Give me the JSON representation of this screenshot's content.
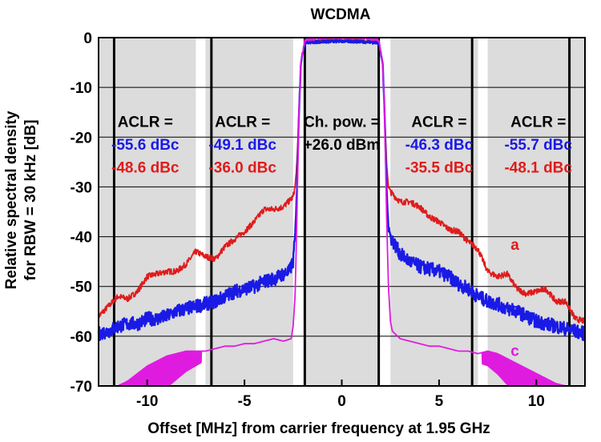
{
  "chart_data": {
    "type": "line",
    "title": "WCDMA",
    "xlabel": "Offset [MHz] from carrier frequency at 1.95 GHz",
    "ylabel_lines": [
      "Relative spectral density",
      "for RBW = 30 kHz [dB]"
    ],
    "xlim": [
      -12.5,
      12.5
    ],
    "ylim": [
      -70,
      0
    ],
    "x_ticks": [
      -10,
      -5,
      0,
      5,
      10
    ],
    "x_tick_labels": [
      "-10",
      "-5",
      "0",
      "5",
      "10"
    ],
    "y_ticks": [
      0,
      -10,
      -20,
      -30,
      -40,
      -50,
      -60,
      -70
    ],
    "y_tick_labels": [
      "0",
      "-10",
      "-20",
      "-30",
      "-40",
      "-50",
      "-60",
      "-70"
    ],
    "grid": "horizontal",
    "shaded_bands": [
      [
        -12.5,
        -7.5
      ],
      [
        -7,
        -2.5
      ],
      [
        -1.9,
        1.9
      ],
      [
        2.5,
        7
      ],
      [
        7.5,
        12.5
      ]
    ],
    "band_lines": [
      -11.7,
      -6.7,
      -1.9,
      1.9,
      6.7,
      11.7
    ],
    "annotations": [
      {
        "label": "ACLR =",
        "x": -10.1,
        "y": -16.8
      },
      {
        "label": "-55.6 dBc",
        "x": -10.1,
        "y": -21.4,
        "color": "#1a1ae6"
      },
      {
        "label": "-48.6 dBc",
        "x": -10.1,
        "y": -26.0,
        "color": "#e01b1b"
      },
      {
        "label": "ACLR =",
        "x": -5.1,
        "y": -16.8
      },
      {
        "label": "-49.1 dBc",
        "x": -5.1,
        "y": -21.4,
        "color": "#1a1ae6"
      },
      {
        "label": "-36.0 dBc",
        "x": -5.1,
        "y": -26.0,
        "color": "#e01b1b"
      },
      {
        "label": "Ch. pow. =",
        "x": 0,
        "y": -16.8
      },
      {
        "label": "+26.0 dBm",
        "x": 0,
        "y": -21.4
      },
      {
        "label": "ACLR =",
        "x": 5.0,
        "y": -16.8
      },
      {
        "label": "-46.3 dBc",
        "x": 5.0,
        "y": -21.4,
        "color": "#1a1ae6"
      },
      {
        "label": "-35.5 dBc",
        "x": 5.0,
        "y": -26.0,
        "color": "#e01b1b"
      },
      {
        "label": "ACLR =",
        "x": 10.1,
        "y": -16.8
      },
      {
        "label": "-55.7 dBc",
        "x": 10.1,
        "y": -21.4,
        "color": "#1a1ae6"
      },
      {
        "label": "-48.1 dBc",
        "x": 10.1,
        "y": -26.0,
        "color": "#e01b1b"
      }
    ],
    "curve_labels": [
      {
        "label": "a",
        "x": 8.9,
        "y": -41.5,
        "color": "#e01b1b"
      },
      {
        "label": "b",
        "x": 8.9,
        "y": -54.5,
        "color": "#1a1ae6"
      },
      {
        "label": "c",
        "x": 8.9,
        "y": -62.8,
        "color": "#e01be0"
      }
    ],
    "series": [
      {
        "name": "a",
        "color": "#e01b1b",
        "points": [
          [
            -12.5,
            -56
          ],
          [
            -12,
            -54
          ],
          [
            -11.5,
            -52
          ],
          [
            -11,
            -52.5
          ],
          [
            -10.5,
            -51
          ],
          [
            -10,
            -48
          ],
          [
            -9.5,
            -47.5
          ],
          [
            -9,
            -47
          ],
          [
            -8.5,
            -47
          ],
          [
            -8,
            -45.5
          ],
          [
            -7.5,
            -43
          ],
          [
            -7,
            -44
          ],
          [
            -6.5,
            -44.5
          ],
          [
            -6,
            -42
          ],
          [
            -5.5,
            -40.5
          ],
          [
            -5,
            -39
          ],
          [
            -4.5,
            -37
          ],
          [
            -4,
            -34.5
          ],
          [
            -3.5,
            -34.5
          ],
          [
            -3,
            -34
          ],
          [
            -2.5,
            -32
          ],
          [
            -2.4,
            -30
          ],
          [
            -2.3,
            -25
          ],
          [
            -2.2,
            -15
          ],
          [
            -2.1,
            -5
          ],
          [
            -1.9,
            -1
          ],
          [
            -1,
            -0.5
          ],
          [
            0,
            -0.5
          ],
          [
            1,
            -0.5
          ],
          [
            1.9,
            -1
          ],
          [
            2.1,
            -5
          ],
          [
            2.2,
            -15
          ],
          [
            2.3,
            -25
          ],
          [
            2.4,
            -30
          ],
          [
            2.5,
            -31
          ],
          [
            3,
            -33
          ],
          [
            3.5,
            -33
          ],
          [
            4,
            -34
          ],
          [
            4.5,
            -36
          ],
          [
            5,
            -37
          ],
          [
            5.5,
            -38.5
          ],
          [
            6,
            -39
          ],
          [
            6.5,
            -41
          ],
          [
            7,
            -42.5
          ],
          [
            7.5,
            -47
          ],
          [
            8,
            -48
          ],
          [
            8.5,
            -47.5
          ],
          [
            9,
            -50.5
          ],
          [
            9.5,
            -51.5
          ],
          [
            10,
            -51
          ],
          [
            10.5,
            -50.5
          ],
          [
            11,
            -53
          ],
          [
            11.5,
            -53
          ],
          [
            12,
            -56.5
          ],
          [
            12.5,
            -57
          ]
        ]
      },
      {
        "name": "b",
        "color": "#1a1ae6",
        "points": [
          [
            -12.5,
            -59.5
          ],
          [
            -12,
            -59
          ],
          [
            -11.5,
            -58
          ],
          [
            -11,
            -57.5
          ],
          [
            -10.5,
            -57.5
          ],
          [
            -10,
            -56.5
          ],
          [
            -9.5,
            -56.5
          ],
          [
            -9,
            -56
          ],
          [
            -8.5,
            -55
          ],
          [
            -8,
            -54.5
          ],
          [
            -7.5,
            -54
          ],
          [
            -7,
            -53.5
          ],
          [
            -6.5,
            -53
          ],
          [
            -6,
            -52
          ],
          [
            -5.5,
            -51
          ],
          [
            -5,
            -50.5
          ],
          [
            -4.5,
            -50
          ],
          [
            -4,
            -49
          ],
          [
            -3.5,
            -48.5
          ],
          [
            -3,
            -47.5
          ],
          [
            -2.7,
            -47
          ],
          [
            -2.5,
            -45
          ],
          [
            -2.4,
            -40
          ],
          [
            -2.3,
            -30
          ],
          [
            -2.2,
            -15
          ],
          [
            -2.1,
            -5
          ],
          [
            -1.9,
            -1
          ],
          [
            -1,
            -0.8
          ],
          [
            0,
            -0.7
          ],
          [
            1,
            -0.8
          ],
          [
            1.9,
            -1
          ],
          [
            2.1,
            -5
          ],
          [
            2.2,
            -15
          ],
          [
            2.3,
            -30
          ],
          [
            2.4,
            -38
          ],
          [
            2.5,
            -40
          ],
          [
            3,
            -43.5
          ],
          [
            3.5,
            -45
          ],
          [
            4,
            -46
          ],
          [
            4.5,
            -46.5
          ],
          [
            5,
            -47
          ],
          [
            5.5,
            -48
          ],
          [
            6,
            -49.5
          ],
          [
            6.5,
            -50.5
          ],
          [
            7,
            -52
          ],
          [
            7.5,
            -53
          ],
          [
            8,
            -53.5
          ],
          [
            8.5,
            -54.5
          ],
          [
            9,
            -55
          ],
          [
            9.5,
            -56
          ],
          [
            10,
            -57
          ],
          [
            10.5,
            -57.5
          ],
          [
            11,
            -58
          ],
          [
            11.5,
            -58.5
          ],
          [
            12,
            -59
          ],
          [
            12.5,
            -59.5
          ]
        ]
      },
      {
        "name": "c",
        "color": "#e01be0",
        "points": [
          [
            -12.5,
            -70
          ],
          [
            -11.5,
            -70
          ],
          [
            -11,
            -69
          ],
          [
            -10.5,
            -67.5
          ],
          [
            -10,
            -66
          ],
          [
            -9.5,
            -65
          ],
          [
            -9,
            -64
          ],
          [
            -8.5,
            -63.5
          ],
          [
            -8,
            -63
          ],
          [
            -7.5,
            -63
          ],
          [
            -7,
            -63
          ],
          [
            -6.5,
            -62.5
          ],
          [
            -6,
            -62
          ],
          [
            -5.5,
            -62
          ],
          [
            -5,
            -61.5
          ],
          [
            -4.5,
            -61.5
          ],
          [
            -4,
            -61
          ],
          [
            -3.5,
            -60.5
          ],
          [
            -3,
            -61
          ],
          [
            -2.6,
            -60.5
          ],
          [
            -2.5,
            -58
          ],
          [
            -2.4,
            -52
          ],
          [
            -2.3,
            -35
          ],
          [
            -2.2,
            -15
          ],
          [
            -2.1,
            -5
          ],
          [
            -1.9,
            -0.5
          ],
          [
            -1,
            0
          ],
          [
            0,
            0
          ],
          [
            1,
            0
          ],
          [
            1.9,
            -0.5
          ],
          [
            2.1,
            -5
          ],
          [
            2.2,
            -15
          ],
          [
            2.3,
            -35
          ],
          [
            2.4,
            -50
          ],
          [
            2.5,
            -57
          ],
          [
            2.6,
            -59
          ],
          [
            3,
            -60.5
          ],
          [
            3.5,
            -61
          ],
          [
            4,
            -61.5
          ],
          [
            4.5,
            -62
          ],
          [
            5,
            -62
          ],
          [
            5.5,
            -62.5
          ],
          [
            6,
            -63
          ],
          [
            6.5,
            -63
          ],
          [
            7,
            -63.5
          ],
          [
            7.5,
            -63
          ],
          [
            8,
            -63.5
          ],
          [
            8.5,
            -64.5
          ],
          [
            9,
            -65.5
          ],
          [
            9.5,
            -66.5
          ],
          [
            10,
            -67.5
          ],
          [
            10.5,
            -68.5
          ],
          [
            11,
            -69.5
          ],
          [
            11.5,
            -70
          ],
          [
            12.5,
            -70
          ]
        ]
      }
    ]
  }
}
